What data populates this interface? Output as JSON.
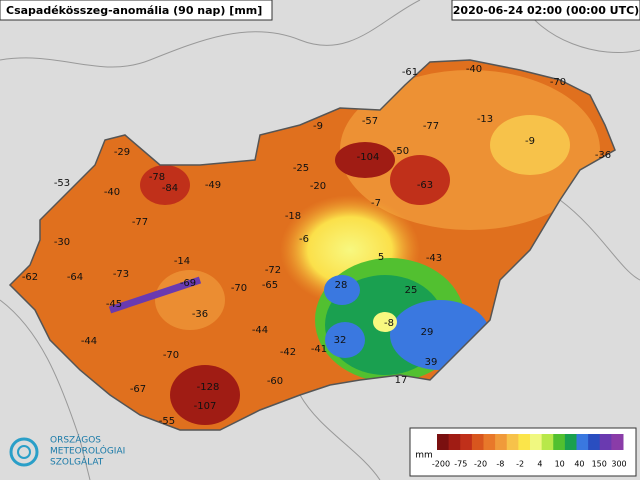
{
  "header": {
    "title": "Csapadékösszeg-anomália (90 nap) [mm]",
    "timestamp": "2020-06-24 02:00 (00:00 UTC)"
  },
  "stations": {
    "values": [
      -61,
      -40,
      -70,
      -57,
      -77,
      -13,
      -9,
      -9,
      -36,
      -29,
      -104,
      -50,
      -53,
      -78,
      -84,
      -49,
      -25,
      -20,
      -63,
      -40,
      -7,
      -18,
      -77,
      -30,
      -6,
      5,
      -43,
      -14,
      -62,
      -64,
      -73,
      -72,
      -69,
      -70,
      -65,
      28,
      25,
      -45,
      -36,
      -8,
      29,
      -44,
      -44,
      32,
      -42,
      -41,
      -70,
      39,
      -60,
      17,
      -67,
      -128,
      -107,
      -55
    ]
  },
  "legend": {
    "unit": "mm",
    "labels": [
      -200,
      -75,
      -20,
      -8,
      -2,
      4,
      10,
      40,
      150,
      300
    ],
    "colors": [
      "#7a1010",
      "#a01c14",
      "#c0301a",
      "#d8561e",
      "#e8782a",
      "#f09a3a",
      "#f7c24a",
      "#fbe54a",
      "#f0f880",
      "#b8e84a",
      "#52c030",
      "#1aa050",
      "#3a78e0",
      "#2a4ec0",
      "#6a3ab0",
      "#8a3ca8"
    ]
  },
  "logo": {
    "lines": [
      "ORSZÁGOS",
      "METEOROLÓGIAI",
      "SZOLGÁLAT"
    ]
  }
}
